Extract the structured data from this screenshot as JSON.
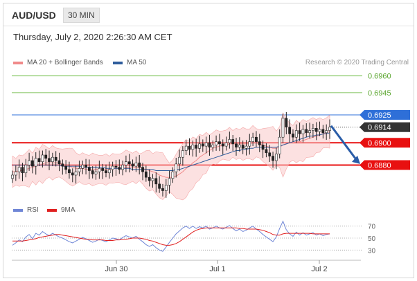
{
  "header": {
    "symbol": "AUD/USD",
    "timeframe": "30 MIN"
  },
  "datetime": "Thursday, July 2, 2020 2:26:30 AM CET",
  "legend": {
    "ma20_label": "MA 20 + Bollinger Bands",
    "ma50_label": "MA 50",
    "ma20_color": "#f08a8a",
    "ma50_color": "#2f5d9c",
    "credit": "Research © 2020 Trading Central"
  },
  "rsi_legend": {
    "rsi_label": "RSI",
    "ma9_label": "9MA",
    "rsi_color": "#6f86d6",
    "ma9_color": "#e02020"
  },
  "chart_data": [
    {
      "type": "candlestick",
      "y_range": [
        0.6848,
        0.6966
      ],
      "x_tick_labels": [
        "Jun 30",
        "Jul 1",
        "Jul 2"
      ],
      "levels": [
        {
          "value": 0.696,
          "label": "0.6960",
          "color": "#7dc25a",
          "kind": "target"
        },
        {
          "value": 0.6945,
          "label": "0.6945",
          "color": "#7dc25a",
          "kind": "target"
        },
        {
          "value": 0.6925,
          "label": "0.6925",
          "color": "#2e6fd8",
          "kind": "pivot"
        },
        {
          "value": 0.6914,
          "label": "0.6914",
          "color": "#333333",
          "kind": "last_price"
        },
        {
          "value": 0.69,
          "label": "0.6900",
          "color": "#e81010",
          "kind": "support"
        },
        {
          "value": 0.688,
          "label": "0.6880",
          "color": "#e81010",
          "kind": "support"
        }
      ],
      "close_series": [
        0.6871,
        0.6874,
        0.6878,
        0.6873,
        0.688,
        0.6884,
        0.6879,
        0.6886,
        0.6883,
        0.6889,
        0.6886,
        0.6883,
        0.6887,
        0.6884,
        0.6881,
        0.6879,
        0.6876,
        0.6873,
        0.6871,
        0.6874,
        0.6877,
        0.688,
        0.6878,
        0.6875,
        0.6872,
        0.6874,
        0.6877,
        0.6875,
        0.6873,
        0.6876,
        0.6879,
        0.6878,
        0.6876,
        0.688,
        0.6883,
        0.6881,
        0.6879,
        0.6882,
        0.6878,
        0.6874,
        0.6869,
        0.6866,
        0.6868,
        0.6863,
        0.6859,
        0.6857,
        0.6862,
        0.6868,
        0.6874,
        0.6881,
        0.6887,
        0.6893,
        0.6897,
        0.6894,
        0.6898,
        0.6895,
        0.6899,
        0.6897,
        0.69,
        0.6896,
        0.6898,
        0.6901,
        0.6899,
        0.6897,
        0.69,
        0.6903,
        0.6899,
        0.6896,
        0.6898,
        0.6895,
        0.6897,
        0.6901,
        0.6905,
        0.6901,
        0.6898,
        0.6894,
        0.6891,
        0.6888,
        0.6884,
        0.689,
        0.6905,
        0.6922,
        0.6914,
        0.6908,
        0.6905,
        0.6911,
        0.6908,
        0.6912,
        0.6909,
        0.6911,
        0.6913,
        0.691,
        0.6912,
        0.6909,
        0.6911,
        0.6914
      ],
      "ma20_series": [
        0.6874,
        0.6874,
        0.6875,
        0.6875,
        0.6876,
        0.6877,
        0.6878,
        0.6879,
        0.688,
        0.6881,
        0.6882,
        0.6882,
        0.6882,
        0.6882,
        0.6882,
        0.6881,
        0.688,
        0.6879,
        0.6878,
        0.6877,
        0.6877,
        0.6877,
        0.6876,
        0.6876,
        0.6876,
        0.6876,
        0.6876,
        0.6876,
        0.6876,
        0.6876,
        0.6877,
        0.6877,
        0.6877,
        0.6877,
        0.6878,
        0.6878,
        0.6878,
        0.6878,
        0.6878,
        0.6877,
        0.6876,
        0.6875,
        0.6874,
        0.6873,
        0.6871,
        0.687,
        0.6869,
        0.6869,
        0.6869,
        0.687,
        0.6872,
        0.6874,
        0.6877,
        0.6879,
        0.6882,
        0.6884,
        0.6887,
        0.6889,
        0.6891,
        0.6893,
        0.6895,
        0.6896,
        0.6897,
        0.6898,
        0.6898,
        0.6899,
        0.6899,
        0.6899,
        0.6899,
        0.6899,
        0.6899,
        0.6899,
        0.69,
        0.69,
        0.6899,
        0.6898,
        0.6897,
        0.6896,
        0.6895,
        0.6895,
        0.6896,
        0.6898,
        0.6899,
        0.69,
        0.69,
        0.6901,
        0.6901,
        0.6902,
        0.6903,
        0.6904,
        0.6905,
        0.6906,
        0.6907,
        0.6908,
        0.6909,
        0.691
      ],
      "bb_width": 0.0012,
      "ma50_series": [
        0.688,
        0.688,
        0.688,
        0.688,
        0.688,
        0.688,
        0.688,
        0.688,
        0.688,
        0.688,
        0.688,
        0.688,
        0.688,
        0.688,
        0.688,
        0.6879,
        0.6879,
        0.6879,
        0.6879,
        0.6879,
        0.6879,
        0.6878,
        0.6878,
        0.6878,
        0.6878,
        0.6878,
        0.6878,
        0.6878,
        0.6877,
        0.6877,
        0.6877,
        0.6877,
        0.6877,
        0.6877,
        0.6877,
        0.6877,
        0.6876,
        0.6876,
        0.6876,
        0.6876,
        0.6876,
        0.6876,
        0.6876,
        0.6875,
        0.6875,
        0.6875,
        0.6875,
        0.6875,
        0.6875,
        0.6876,
        0.6876,
        0.6877,
        0.6878,
        0.6879,
        0.688,
        0.6881,
        0.6882,
        0.6883,
        0.6884,
        0.6885,
        0.6886,
        0.6887,
        0.6888,
        0.6889,
        0.689,
        0.6891,
        0.6892,
        0.6893,
        0.6893,
        0.6894,
        0.6894,
        0.6895,
        0.6895,
        0.6896,
        0.6896,
        0.6896,
        0.6896,
        0.6896,
        0.6896,
        0.6896,
        0.6897,
        0.6898,
        0.6899,
        0.69,
        0.6901,
        0.6902,
        0.6903,
        0.6904,
        0.6905,
        0.6906,
        0.6906,
        0.6907,
        0.6907,
        0.6908,
        0.6908,
        0.6909
      ]
    },
    {
      "type": "line",
      "name": "RSI",
      "y_range": [
        20,
        80
      ],
      "y_tick_labels": [
        "70",
        "50",
        "30"
      ],
      "y_ticks": [
        70,
        50,
        30
      ],
      "rsi_series": [
        38,
        42,
        47,
        44,
        52,
        56,
        49,
        58,
        55,
        61,
        57,
        54,
        58,
        55,
        52,
        50,
        47,
        44,
        42,
        45,
        48,
        51,
        49,
        46,
        43,
        45,
        48,
        46,
        44,
        47,
        50,
        49,
        47,
        51,
        54,
        52,
        50,
        53,
        48,
        44,
        39,
        36,
        39,
        34,
        30,
        28,
        35,
        43,
        50,
        57,
        62,
        67,
        70,
        66,
        70,
        66,
        69,
        67,
        70,
        65,
        67,
        70,
        67,
        65,
        68,
        71,
        66,
        62,
        65,
        61,
        63,
        67,
        70,
        65,
        61,
        56,
        52,
        48,
        44,
        52,
        66,
        78,
        64,
        57,
        53,
        60,
        55,
        59,
        55,
        57,
        59,
        55,
        57,
        54,
        56,
        57
      ],
      "ma9_series": [
        45,
        45,
        45,
        45,
        46,
        47,
        48,
        49,
        51,
        52,
        53,
        54,
        55,
        56,
        56,
        55,
        54,
        53,
        52,
        51,
        50,
        49,
        48,
        48,
        47,
        47,
        47,
        47,
        46,
        46,
        46,
        47,
        47,
        48,
        48,
        49,
        50,
        50,
        50,
        49,
        48,
        46,
        45,
        43,
        41,
        39,
        38,
        38,
        39,
        41,
        44,
        48,
        52,
        56,
        60,
        63,
        65,
        66,
        67,
        67,
        67,
        67,
        67,
        67,
        67,
        67,
        67,
        67,
        66,
        66,
        65,
        65,
        65,
        65,
        64,
        63,
        61,
        59,
        56,
        55,
        55,
        57,
        58,
        58,
        58,
        58,
        58,
        58,
        58,
        58,
        57,
        57,
        57,
        57,
        57,
        57
      ]
    }
  ]
}
